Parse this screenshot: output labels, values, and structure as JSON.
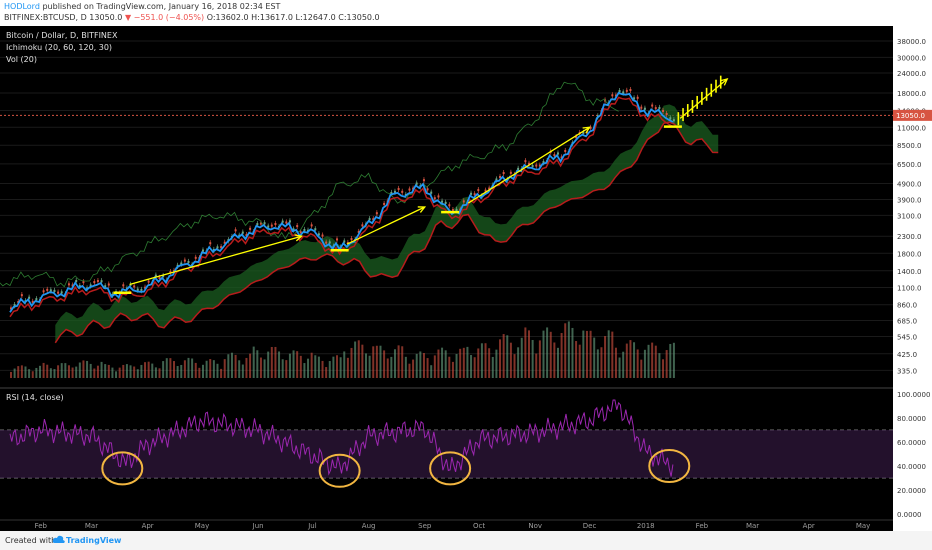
{
  "header": {
    "author": "HODLord",
    "published": "published on TradingView.com, January 16, 2018 02:34 EST",
    "symbol": "BITFINEX:BTCUSD, D",
    "price": "13050.0",
    "change": "▼ −551.0 (−4.05%)",
    "ohlc": "O:13602.0 H:13617.0 L:12647.0 C:13050.0"
  },
  "legend": {
    "title": "Bitcoin / Dollar, D, BITFINEX",
    "ichimoku": "Ichimoku (20, 60, 120, 30)",
    "vol": "Vol (20)",
    "rsi": "RSI (14, close)"
  },
  "footer": {
    "created": "Created with",
    "brand": "TradingView"
  },
  "colors": {
    "background": "#000000",
    "candle_up": "#6ba583",
    "candle_down": "#d75442",
    "tenkan": "#2196f3",
    "kijun": "#b71c1c",
    "chikou": "#2e7d32",
    "cloud": "#1b5e20",
    "annotation": "#ffff00",
    "circle": "#f2b641",
    "rsi_line": "#9c27b0"
  },
  "chart_data": [
    {
      "type": "line",
      "panel": "price",
      "scale": "log",
      "x": [
        "2017-01-15",
        "2017-02-01",
        "2017-03-01",
        "2017-03-15",
        "2017-04-01",
        "2017-05-01",
        "2017-05-25",
        "2017-06-10",
        "2017-07-01",
        "2017-07-16",
        "2017-08-01",
        "2017-08-15",
        "2017-09-01",
        "2017-09-15",
        "2017-10-01",
        "2017-10-20",
        "2017-11-01",
        "2017-11-15",
        "2017-12-01",
        "2017-12-17",
        "2018-01-01",
        "2018-01-16"
      ],
      "series": [
        {
          "values": [
            850,
            990,
            1200,
            1050,
            1150,
            1800,
            2500,
            2800,
            2500,
            1950,
            2800,
            4300,
            4800,
            3300,
            4300,
            5900,
            6500,
            7500,
            11000,
            19500,
            14500,
            13050
          ]
        }
      ],
      "y_ticks": [
        "38000.0",
        "30000.0",
        "24000.0",
        "18000.0",
        "14000.0",
        "11000.0",
        "8500.0",
        "6500.0",
        "4900.0",
        "3900.0",
        "3100.0",
        "2300.0",
        "1800.0",
        "1400.0",
        "1100.0",
        "860.0",
        "685.0",
        "545.0",
        "425.0",
        "335.0"
      ],
      "current_price": "13050.0",
      "ylim": [
        300,
        42000
      ],
      "projection": [
        {
          "date": "2018-01-20",
          "value": 11500
        },
        {
          "date": "2018-02-15",
          "value": 25000
        }
      ],
      "annotations": [
        "uptrend arrows from local lows",
        "yellow markers at support touches"
      ]
    },
    {
      "type": "bar",
      "panel": "volume",
      "note": "Vol (20) histogram shown at bottom of price panel",
      "values": [
        10,
        12,
        14,
        11,
        13,
        16,
        15,
        20,
        25,
        22,
        18,
        30,
        26,
        21,
        24,
        28,
        35,
        40,
        45,
        38,
        30,
        28
      ]
    },
    {
      "type": "line",
      "panel": "rsi",
      "x": [
        "2017-01-15",
        "2017-02-01",
        "2017-03-01",
        "2017-03-20",
        "2017-04-01",
        "2017-05-01",
        "2017-06-01",
        "2017-07-16",
        "2017-08-01",
        "2017-09-01",
        "2017-09-15",
        "2017-10-01",
        "2017-11-01",
        "2017-12-01",
        "2017-12-17",
        "2018-01-01",
        "2018-01-16"
      ],
      "series": [
        {
          "values": [
            62,
            70,
            65,
            42,
            58,
            78,
            70,
            38,
            65,
            72,
            36,
            62,
            68,
            78,
            92,
            52,
            40
          ]
        }
      ],
      "y_ticks": [
        "100.0000",
        "80.0000",
        "60.0000",
        "40.0000",
        "20.0000",
        "0.0000"
      ],
      "ylim": [
        0,
        100
      ],
      "bands": [
        30,
        70
      ]
    }
  ],
  "x_axis_labels": [
    "Feb",
    "Mar",
    "Apr",
    "May",
    "Jun",
    "Jul",
    "Aug",
    "Sep",
    "Oct",
    "Nov",
    "Dec",
    "2018",
    "Feb",
    "Mar",
    "Apr",
    "May"
  ]
}
